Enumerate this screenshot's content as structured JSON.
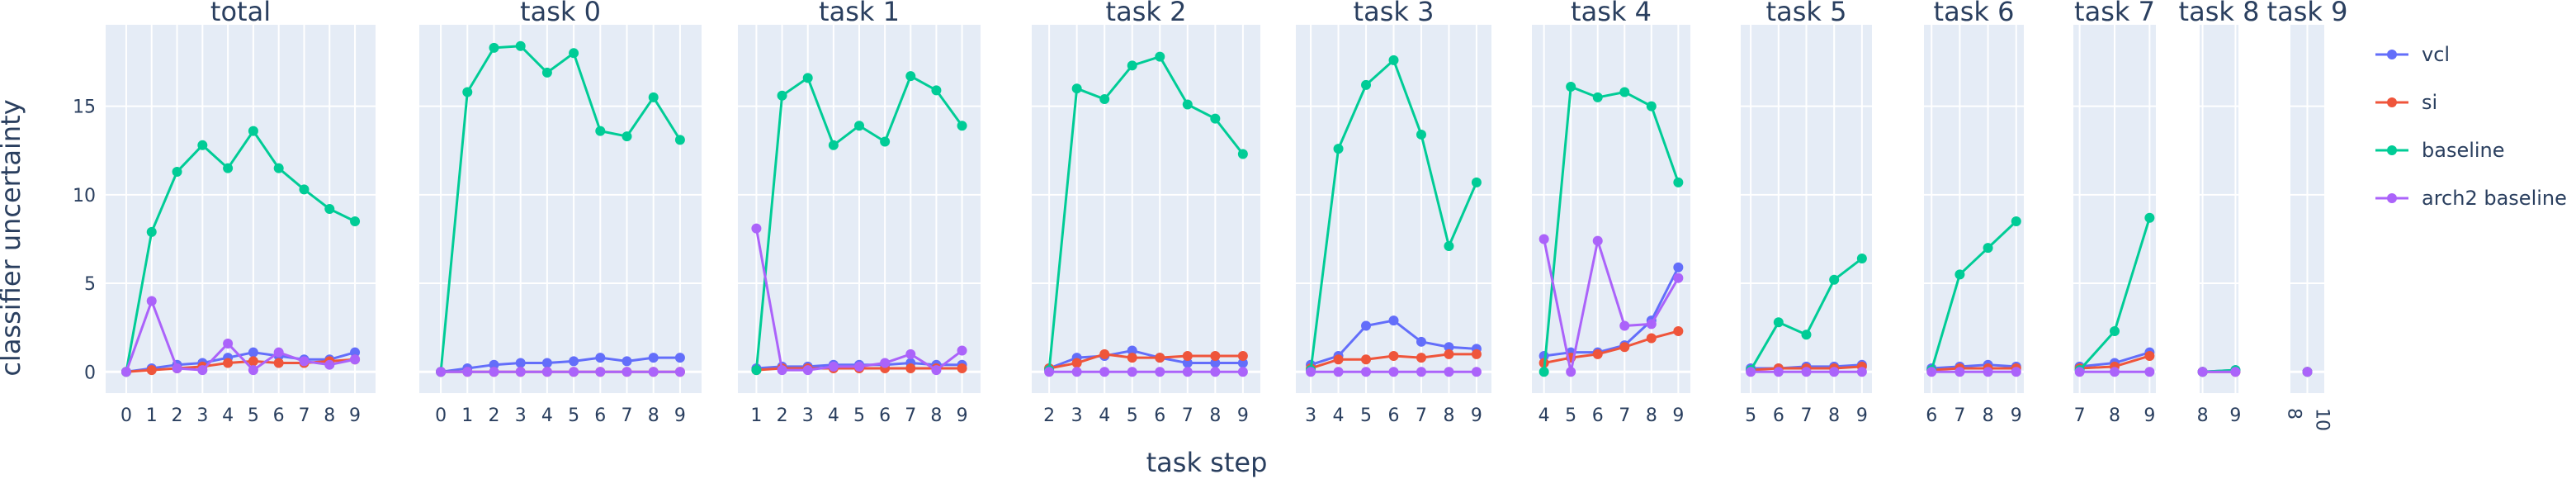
{
  "chart_data": {
    "type": "line",
    "xlabel": "task step",
    "ylabel": "classifier uncertainty",
    "ylim": [
      -1.2,
      19.6
    ],
    "yticks": [
      0,
      5,
      10,
      15
    ],
    "grid": true,
    "legend_position": "top-right",
    "colors": {
      "vcl": "#636efa",
      "si": "#ef553b",
      "baseline": "#00cc96",
      "arch2 baseline": "#ab63fa"
    },
    "series_names": [
      "vcl",
      "si",
      "baseline",
      "arch2 baseline"
    ],
    "subplots": [
      {
        "title": "total",
        "x": [
          0,
          1,
          2,
          3,
          4,
          5,
          6,
          7,
          8,
          9
        ],
        "series": [
          {
            "name": "vcl",
            "values": [
              0,
              0.2,
              0.4,
              0.5,
              0.8,
              1.1,
              0.9,
              0.7,
              0.7,
              1.1
            ]
          },
          {
            "name": "si",
            "values": [
              0,
              0.1,
              0.2,
              0.3,
              0.5,
              0.6,
              0.5,
              0.5,
              0.6,
              0.7
            ]
          },
          {
            "name": "baseline",
            "values": [
              0,
              7.9,
              11.3,
              12.8,
              11.5,
              13.6,
              11.5,
              10.3,
              9.2,
              8.5
            ]
          },
          {
            "name": "arch2 baseline",
            "values": [
              0,
              4.0,
              0.2,
              0.1,
              1.6,
              0.1,
              1.1,
              0.6,
              0.4,
              0.7
            ]
          }
        ]
      },
      {
        "title": "task 0",
        "x": [
          0,
          1,
          2,
          3,
          4,
          5,
          6,
          7,
          8,
          9
        ],
        "series": [
          {
            "name": "vcl",
            "values": [
              0,
              0.2,
              0.4,
              0.5,
              0.5,
              0.6,
              0.8,
              0.6,
              0.8,
              0.8
            ]
          },
          {
            "name": "si",
            "values": [
              0,
              0,
              0,
              0,
              0,
              0,
              0,
              0,
              0,
              0
            ]
          },
          {
            "name": "baseline",
            "values": [
              0,
              15.8,
              18.3,
              18.4,
              16.9,
              18.0,
              13.6,
              13.3,
              15.5,
              13.1
            ]
          },
          {
            "name": "arch2 baseline",
            "values": [
              0,
              0,
              0,
              0,
              0,
              0,
              0,
              0,
              0,
              0
            ]
          }
        ]
      },
      {
        "title": "task 1",
        "x": [
          1,
          2,
          3,
          4,
          5,
          6,
          7,
          8,
          9
        ],
        "series": [
          {
            "name": "vcl",
            "values": [
              0.2,
              0.3,
              0.3,
              0.4,
              0.4,
              0.4,
              0.5,
              0.4,
              0.4
            ]
          },
          {
            "name": "si",
            "values": [
              0.1,
              0.2,
              0.2,
              0.2,
              0.2,
              0.2,
              0.2,
              0.2,
              0.2
            ]
          },
          {
            "name": "baseline",
            "values": [
              0.1,
              15.6,
              16.6,
              12.8,
              13.9,
              13.0,
              16.7,
              15.9,
              13.9
            ]
          },
          {
            "name": "arch2 baseline",
            "values": [
              8.1,
              0.1,
              0.1,
              0.3,
              0.3,
              0.5,
              1.0,
              0.1,
              1.2
            ]
          }
        ]
      },
      {
        "title": "task 2",
        "x": [
          2,
          3,
          4,
          5,
          6,
          7,
          8,
          9
        ],
        "series": [
          {
            "name": "vcl",
            "values": [
              0.2,
              0.8,
              0.9,
              1.2,
              0.8,
              0.5,
              0.5,
              0.5
            ]
          },
          {
            "name": "si",
            "values": [
              0.2,
              0.5,
              1.0,
              0.8,
              0.8,
              0.9,
              0.9,
              0.9
            ]
          },
          {
            "name": "baseline",
            "values": [
              0.1,
              16.0,
              15.4,
              17.3,
              17.8,
              15.1,
              14.3,
              12.3
            ]
          },
          {
            "name": "arch2 baseline",
            "values": [
              0,
              0,
              0,
              0,
              0,
              0,
              0,
              0
            ]
          }
        ]
      },
      {
        "title": "task 3",
        "x": [
          3,
          4,
          5,
          6,
          7,
          8,
          9
        ],
        "series": [
          {
            "name": "vcl",
            "values": [
              0.4,
              0.9,
              2.6,
              2.9,
              1.7,
              1.4,
              1.3
            ]
          },
          {
            "name": "si",
            "values": [
              0.2,
              0.7,
              0.7,
              0.9,
              0.8,
              1.0,
              1.0
            ]
          },
          {
            "name": "baseline",
            "values": [
              0.1,
              12.6,
              16.2,
              17.6,
              13.4,
              7.1,
              10.7
            ]
          },
          {
            "name": "arch2 baseline",
            "values": [
              0,
              0,
              0,
              0,
              0,
              0,
              0
            ]
          }
        ]
      },
      {
        "title": "task 4",
        "x": [
          4,
          5,
          6,
          7,
          8,
          9
        ],
        "series": [
          {
            "name": "vcl",
            "values": [
              0.9,
              1.1,
              1.1,
              1.5,
              2.9,
              5.9
            ]
          },
          {
            "name": "si",
            "values": [
              0.5,
              0.8,
              1.0,
              1.4,
              1.9,
              2.3
            ]
          },
          {
            "name": "baseline",
            "values": [
              0,
              16.1,
              15.5,
              15.8,
              15.0,
              10.7
            ]
          },
          {
            "name": "arch2 baseline",
            "values": [
              7.5,
              0,
              7.4,
              2.6,
              2.7,
              5.3
            ]
          }
        ]
      },
      {
        "title": "task 5",
        "x": [
          5,
          6,
          7,
          8,
          9
        ],
        "series": [
          {
            "name": "vcl",
            "values": [
              0.2,
              0.2,
              0.3,
              0.3,
              0.4
            ]
          },
          {
            "name": "si",
            "values": [
              0.1,
              0.2,
              0.2,
              0.2,
              0.3
            ]
          },
          {
            "name": "baseline",
            "values": [
              0.1,
              2.8,
              2.1,
              5.2,
              6.4
            ]
          },
          {
            "name": "arch2 baseline",
            "values": [
              0,
              0,
              0,
              0,
              0
            ]
          }
        ]
      },
      {
        "title": "task 6",
        "x": [
          6,
          7,
          8,
          9
        ],
        "series": [
          {
            "name": "vcl",
            "values": [
              0.2,
              0.3,
              0.4,
              0.3
            ]
          },
          {
            "name": "si",
            "values": [
              0.1,
              0.2,
              0.2,
              0.2
            ]
          },
          {
            "name": "baseline",
            "values": [
              0.1,
              5.5,
              7.0,
              8.5
            ]
          },
          {
            "name": "arch2 baseline",
            "values": [
              0,
              0,
              0,
              0
            ]
          }
        ]
      },
      {
        "title": "task 7",
        "x": [
          7,
          8,
          9
        ],
        "series": [
          {
            "name": "vcl",
            "values": [
              0.3,
              0.5,
              1.1
            ]
          },
          {
            "name": "si",
            "values": [
              0.2,
              0.3,
              0.9
            ]
          },
          {
            "name": "baseline",
            "values": [
              0.1,
              2.3,
              8.7
            ]
          },
          {
            "name": "arch2 baseline",
            "values": [
              0,
              0,
              0
            ]
          }
        ]
      },
      {
        "title": "task 8",
        "x": [
          8,
          9
        ],
        "series": [
          {
            "name": "vcl",
            "values": [
              0,
              0.1
            ]
          },
          {
            "name": "si",
            "values": [
              0,
              0
            ]
          },
          {
            "name": "baseline",
            "values": [
              0,
              0.1
            ]
          },
          {
            "name": "arch2 baseline",
            "values": [
              0,
              0
            ]
          }
        ]
      },
      {
        "title": "task 9",
        "x": [
          9
        ],
        "xticks": [
          8,
          10
        ],
        "series": [
          {
            "name": "vcl",
            "values": [
              0
            ]
          },
          {
            "name": "si",
            "values": [
              0
            ]
          },
          {
            "name": "baseline",
            "values": [
              0
            ]
          },
          {
            "name": "arch2 baseline",
            "values": [
              0
            ]
          }
        ]
      }
    ]
  }
}
